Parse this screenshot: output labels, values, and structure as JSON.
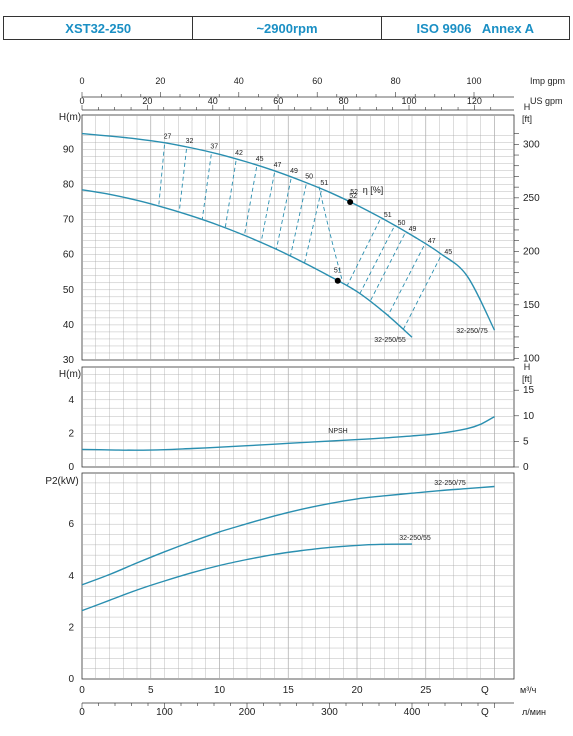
{
  "header": {
    "model": "XST32-250",
    "speed": "~2900rpm",
    "standard": "ISO 9906   Annex A"
  },
  "chart_data": [
    {
      "type": "line",
      "name": "head",
      "top_axis_imp_label": "Imp gpm",
      "top_axis_us_label": "US gpm",
      "imp_gpm_ticks": [
        "0",
        "20",
        "40",
        "60",
        "80",
        "100"
      ],
      "us_gpm_ticks": [
        "0",
        "20",
        "40",
        "60",
        "80",
        "100",
        "120"
      ],
      "ylabel_left": "H(m)",
      "ylabel_right": "H\n[ft]",
      "ylim": [
        30,
        95
      ],
      "y_ticks": [
        "30",
        "40",
        "50",
        "60",
        "70",
        "80",
        "90"
      ],
      "right_ticks": [
        "100",
        "150",
        "200",
        "250",
        "300"
      ],
      "efficiency_label": "η [%]",
      "series": [
        {
          "name": "32-250/75",
          "x": [
            0,
            2,
            4,
            6,
            8,
            10,
            12,
            14,
            16,
            18,
            20,
            22,
            24,
            26,
            28,
            30
          ],
          "y": [
            94.5,
            93.8,
            93.0,
            91.9,
            90.4,
            88.6,
            86.4,
            83.9,
            81.0,
            77.8,
            74.1,
            70.0,
            65.5,
            60.5,
            54.0,
            38.5
          ]
        },
        {
          "name": "32-250/55",
          "x": [
            0,
            2,
            4,
            6,
            8,
            10,
            12,
            14,
            16,
            18,
            20,
            22,
            24
          ],
          "y": [
            78.5,
            77.2,
            75.5,
            73.4,
            71.0,
            68.3,
            65.2,
            61.8,
            58.0,
            53.9,
            49.5,
            43.5,
            36.5
          ]
        }
      ],
      "efficiency_points": [
        {
          "label": "27",
          "x": 6.0
        },
        {
          "label": "32",
          "x": 7.6
        },
        {
          "label": "37",
          "x": 9.4
        },
        {
          "label": "42",
          "x": 11.2
        },
        {
          "label": "45",
          "x": 12.7
        },
        {
          "label": "47",
          "x": 14.0
        },
        {
          "label": "49",
          "x": 15.2
        },
        {
          "label": "50",
          "x": 16.3
        },
        {
          "label": "51",
          "x": 17.4
        },
        {
          "label": "52",
          "x": 19.5
        }
      ],
      "efficiency_points_low": [
        {
          "label": "51",
          "x": 21.8
        },
        {
          "label": "50",
          "x": 22.8
        },
        {
          "label": "49",
          "x": 23.6
        },
        {
          "label": "47",
          "x": 25.0
        },
        {
          "label": "45",
          "x": 26.2
        }
      ],
      "bep_75": {
        "label": "52",
        "x": 19.5
      },
      "bep_55": {
        "label": "51",
        "x": 18.6
      }
    },
    {
      "type": "line",
      "name": "npsh",
      "ylabel_left": "H(m)",
      "ylabel_right": "H\n[ft]",
      "ylim": [
        0,
        5
      ],
      "y_ticks": [
        "0",
        "2",
        "4"
      ],
      "right_ticks": [
        "0",
        "5",
        "10",
        "15"
      ],
      "series": [
        {
          "name": "NPSH",
          "x": [
            0,
            2,
            4,
            6,
            8,
            10,
            12,
            14,
            16,
            18,
            20,
            22,
            24,
            26,
            28,
            29,
            30
          ],
          "y": [
            1.05,
            1.02,
            1.0,
            1.03,
            1.1,
            1.18,
            1.27,
            1.36,
            1.45,
            1.54,
            1.63,
            1.73,
            1.85,
            2.0,
            2.28,
            2.55,
            3.0
          ]
        }
      ]
    },
    {
      "type": "line",
      "name": "power",
      "ylabel": "P2(kW)",
      "ylim": [
        0,
        8.2
      ],
      "y_ticks": [
        "0",
        "2",
        "4",
        "6"
      ],
      "x_ticks": [
        "0",
        "5",
        "10",
        "15",
        "20",
        "25"
      ],
      "x_unit_label": "Q",
      "x_unit": "м³/ч",
      "lmin_ticks": [
        "0",
        "100",
        "200",
        "300",
        "400"
      ],
      "lmin_q_label": "Q",
      "lmin_unit": "л/мин",
      "series": [
        {
          "name": "32-250/75",
          "x": [
            0,
            2,
            4,
            6,
            8,
            10,
            12,
            14,
            16,
            18,
            20,
            22,
            24,
            26,
            28,
            30
          ],
          "y": [
            3.65,
            4.05,
            4.5,
            4.93,
            5.33,
            5.7,
            6.02,
            6.32,
            6.58,
            6.8,
            6.98,
            7.1,
            7.2,
            7.3,
            7.38,
            7.46
          ]
        },
        {
          "name": "32-250/55",
          "x": [
            0,
            2,
            4,
            6,
            8,
            10,
            12,
            14,
            16,
            18,
            20,
            22,
            24
          ],
          "y": [
            2.65,
            3.05,
            3.45,
            3.8,
            4.12,
            4.4,
            4.63,
            4.83,
            4.98,
            5.1,
            5.18,
            5.22,
            5.23
          ]
        }
      ]
    }
  ]
}
